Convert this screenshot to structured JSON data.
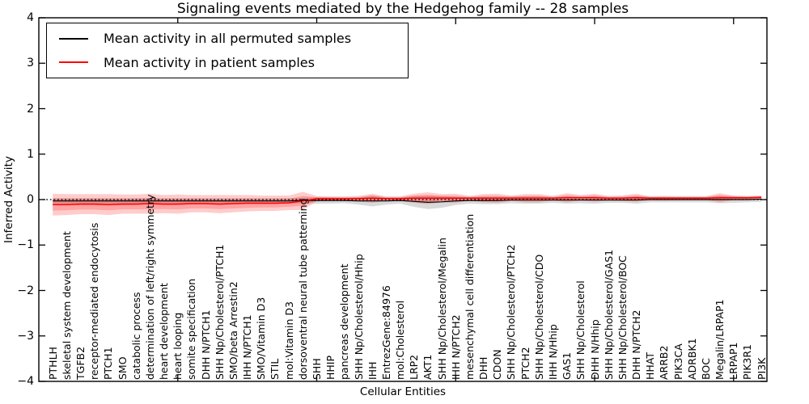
{
  "chart_data": {
    "type": "line",
    "title": "Signaling events mediated by the Hedgehog family -- 28 samples",
    "xlabel": "Cellular Entities",
    "ylabel": "Inferred Activity",
    "ylim": [
      -4,
      4
    ],
    "yticks": [
      4,
      3,
      2,
      1,
      0,
      -1,
      -2,
      -3,
      -4
    ],
    "ytick_labels": [
      "4",
      "3",
      "2",
      "1",
      "0",
      "−1",
      "−2",
      "−3",
      "−4"
    ],
    "xticks": [
      10,
      20,
      30,
      40,
      50
    ],
    "grid": false,
    "legend_position": "upper left",
    "zero_line": {
      "y": 0,
      "style": "dotted",
      "color": "#000000"
    },
    "categories": [
      "PTHLH",
      "skeletal system development",
      "TGFB2",
      "receptor-mediated endocytosis",
      "PTCH1",
      "SMO",
      "catabolic process",
      "determination of left/right symmetry",
      "heart development",
      "heart looping",
      "somite specification",
      "DHH N/PTCH1",
      "SHH Np/Cholesterol/PTCH1",
      "SMO/beta Arrestin2",
      "IHH N/PTCH1",
      "SMO/Vitamin D3",
      "STIL",
      "mol:Vitamin D3",
      "dorsoventral neural tube patterning",
      "SHH",
      "HHIP",
      "pancreas development",
      "SHH Np/Cholesterol/Hhip",
      "IHH",
      "EntrezGene:84976",
      "mol:Cholesterol",
      "LRP2",
      "AKT1",
      "SHH Np/Cholesterol/Megalin",
      "IHH N/PTCH2",
      "mesenchymal cell differentiation",
      "DHH",
      "CDON",
      "SHH Np/Cholesterol/PTCH2",
      "PTCH2",
      "SHH Np/Cholesterol/CDO",
      "IHH N/Hhip",
      "GAS1",
      "SHH Np/Cholesterol",
      "DHH N/Hhip",
      "SHH Np/Cholesterol/GAS1",
      "SHH Np/Cholesterol/BOC",
      "DHH N/PTCH2",
      "HHAT",
      "ARRB2",
      "PIK3CA",
      "ADRBK1",
      "BOC",
      "Megalin/LRPAP1",
      "LRPAP1",
      "PIK3R1",
      "PI3K"
    ],
    "series": [
      {
        "name": "Mean activity in all permuted samples",
        "color": "#000000",
        "band_color": "rgba(120,120,120,0.28)",
        "values": [
          -0.03,
          -0.03,
          -0.03,
          -0.03,
          -0.03,
          -0.03,
          -0.03,
          -0.03,
          -0.03,
          -0.03,
          -0.03,
          -0.03,
          -0.03,
          -0.03,
          -0.03,
          -0.03,
          -0.03,
          -0.03,
          -0.02,
          -0.02,
          -0.02,
          -0.02,
          -0.03,
          -0.03,
          -0.03,
          -0.02,
          -0.04,
          -0.06,
          -0.05,
          -0.03,
          -0.02,
          -0.02,
          -0.02,
          -0.01,
          -0.01,
          -0.01,
          -0.01,
          -0.01,
          -0.01,
          -0.01,
          -0.01,
          -0.01,
          -0.01,
          0.0,
          0.0,
          0.0,
          0.0,
          0.0,
          0.0,
          0.0,
          0.0,
          0.01
        ],
        "band_halfwidth": [
          0.06,
          0.06,
          0.06,
          0.06,
          0.06,
          0.06,
          0.06,
          0.06,
          0.06,
          0.06,
          0.06,
          0.06,
          0.06,
          0.06,
          0.06,
          0.06,
          0.06,
          0.06,
          0.06,
          0.07,
          0.07,
          0.06,
          0.08,
          0.12,
          0.08,
          0.07,
          0.12,
          0.15,
          0.13,
          0.09,
          0.07,
          0.08,
          0.08,
          0.07,
          0.08,
          0.08,
          0.06,
          0.08,
          0.07,
          0.08,
          0.06,
          0.06,
          0.08,
          0.06,
          0.06,
          0.06,
          0.06,
          0.06,
          0.08,
          0.07,
          0.06,
          0.06
        ]
      },
      {
        "name": "Mean activity in patient samples",
        "color": "#ff0000",
        "band_color": "rgba(255,0,0,0.20)",
        "inner_band_ratio": 0.55,
        "values": [
          -0.11,
          -0.11,
          -0.1,
          -0.1,
          -0.11,
          -0.1,
          -0.1,
          -0.09,
          -0.1,
          -0.1,
          -0.09,
          -0.09,
          -0.1,
          -0.09,
          -0.08,
          -0.08,
          -0.08,
          -0.07,
          -0.03,
          0.02,
          0.02,
          0.02,
          0.02,
          0.03,
          0.02,
          0.02,
          0.03,
          0.03,
          0.03,
          0.03,
          0.03,
          0.03,
          0.03,
          0.03,
          0.03,
          0.03,
          0.03,
          0.04,
          0.04,
          0.04,
          0.03,
          0.03,
          0.04,
          0.03,
          0.03,
          0.03,
          0.03,
          0.03,
          0.04,
          0.04,
          0.04,
          0.05
        ],
        "band_halfwidth": [
          0.24,
          0.23,
          0.22,
          0.22,
          0.23,
          0.21,
          0.21,
          0.22,
          0.2,
          0.21,
          0.19,
          0.19,
          0.2,
          0.19,
          0.18,
          0.17,
          0.17,
          0.16,
          0.2,
          0.06,
          0.05,
          0.05,
          0.06,
          0.1,
          0.05,
          0.05,
          0.1,
          0.13,
          0.09,
          0.1,
          0.05,
          0.09,
          0.1,
          0.06,
          0.09,
          0.09,
          0.05,
          0.1,
          0.06,
          0.09,
          0.05,
          0.06,
          0.09,
          0.04,
          0.05,
          0.04,
          0.04,
          0.04,
          0.1,
          0.05,
          0.04,
          0.04
        ]
      }
    ]
  }
}
